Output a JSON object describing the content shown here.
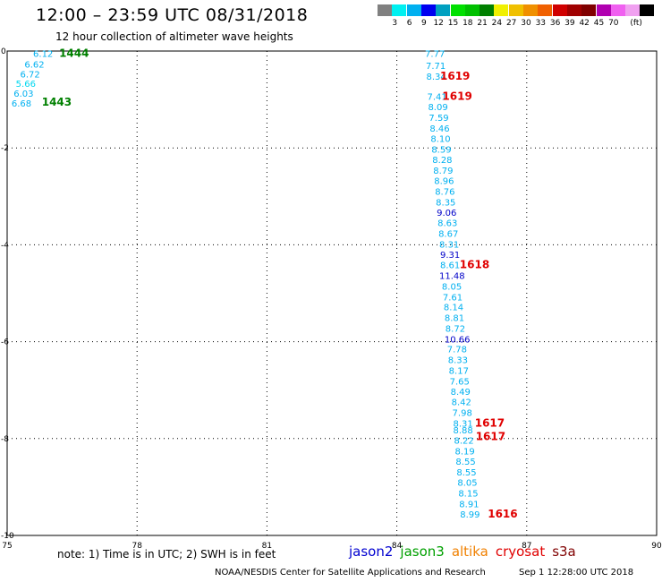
{
  "header": {
    "title": "12:00 – 23:59 UTC 08/31/2018",
    "subtitle": "12 hour collection of altimeter wave heights"
  },
  "legend": {
    "colors": [
      "#808080",
      "#00f0f0",
      "#00b0f0",
      "#0000f0",
      "#00a0c0",
      "#00e000",
      "#00c000",
      "#008000",
      "#f0f000",
      "#f0c000",
      "#f09000",
      "#f06000",
      "#d00000",
      "#a00000",
      "#800000",
      "#b000b0",
      "#f060f0",
      "#f0a0f0",
      "#000000"
    ],
    "labels": [
      "3",
      "6",
      "9",
      "12",
      "15",
      "18",
      "21",
      "24",
      "27",
      "30",
      "33",
      "36",
      "39",
      "42",
      "45",
      "70"
    ],
    "unit": "(ft)"
  },
  "footer": {
    "note": "note: 1) Time is in UTC; 2) SWH is in feet",
    "missions": [
      {
        "name": "jason2",
        "color": "#0000d0"
      },
      {
        "name": "jason3",
        "color": "#00a000"
      },
      {
        "name": "altika",
        "color": "#f08000"
      },
      {
        "name": "cryosat",
        "color": "#e00000"
      },
      {
        "name": "s3a",
        "color": "#800000"
      }
    ],
    "credit": "NOAA/NESDIS Center for Satellite Applications and Research",
    "stamp": "Sep  1 12:28:00 UTC 2018"
  },
  "chart_data": {
    "type": "scatter",
    "xlim": [
      75,
      90
    ],
    "ylim": [
      -10,
      0
    ],
    "x_ticks": [
      "75",
      "78",
      "81",
      "84",
      "87",
      "90"
    ],
    "y_ticks": [
      "0",
      "-2",
      "-4",
      "-6",
      "-8",
      "-10"
    ],
    "grid": true,
    "wave_heights": [
      {
        "lon": 75.6,
        "lat": -0.05,
        "value": "6.12",
        "color": "#00b0f0"
      },
      {
        "lon": 75.4,
        "lat": -0.27,
        "value": "6.62",
        "color": "#00b0f0"
      },
      {
        "lon": 75.3,
        "lat": -0.47,
        "value": "6.72",
        "color": "#00b0f0"
      },
      {
        "lon": 75.2,
        "lat": -0.67,
        "value": "5.66",
        "color": "#00d8f0"
      },
      {
        "lon": 75.15,
        "lat": -0.87,
        "value": "6.03",
        "color": "#00b0f0"
      },
      {
        "lon": 75.1,
        "lat": -1.07,
        "value": "6.68",
        "color": "#00b0f0"
      },
      {
        "lon": 84.65,
        "lat": -0.05,
        "value": "7.77",
        "color": "#00b0f0"
      },
      {
        "lon": 84.67,
        "lat": -0.3,
        "value": "7.71",
        "color": "#00b0f0"
      },
      {
        "lon": 84.68,
        "lat": -0.52,
        "value": "8.34",
        "color": "#00b0f0"
      },
      {
        "lon": 84.7,
        "lat": -0.93,
        "value": "7.41",
        "color": "#00b0f0"
      },
      {
        "lon": 84.72,
        "lat": -1.15,
        "value": "8.09",
        "color": "#00b0f0"
      },
      {
        "lon": 84.74,
        "lat": -1.37,
        "value": "7.59",
        "color": "#00b0f0"
      },
      {
        "lon": 84.76,
        "lat": -1.59,
        "value": "8.46",
        "color": "#00b0f0"
      },
      {
        "lon": 84.78,
        "lat": -1.8,
        "value": "8.10",
        "color": "#00b0f0"
      },
      {
        "lon": 84.8,
        "lat": -2.02,
        "value": "8.59",
        "color": "#00b0f0"
      },
      {
        "lon": 84.82,
        "lat": -2.24,
        "value": "8.28",
        "color": "#00b0f0"
      },
      {
        "lon": 84.84,
        "lat": -2.46,
        "value": "8.79",
        "color": "#00b0f0"
      },
      {
        "lon": 84.86,
        "lat": -2.67,
        "value": "8.96",
        "color": "#00b0f0"
      },
      {
        "lon": 84.88,
        "lat": -2.89,
        "value": "8.76",
        "color": "#00b0f0"
      },
      {
        "lon": 84.9,
        "lat": -3.11,
        "value": "8.35",
        "color": "#00b0f0"
      },
      {
        "lon": 84.92,
        "lat": -3.33,
        "value": "9.06",
        "color": "#0000c8"
      },
      {
        "lon": 84.94,
        "lat": -3.54,
        "value": "8.63",
        "color": "#00b0f0"
      },
      {
        "lon": 84.96,
        "lat": -3.76,
        "value": "8.67",
        "color": "#00b0f0"
      },
      {
        "lon": 84.98,
        "lat": -3.98,
        "value": "8.31",
        "color": "#00b0f0"
      },
      {
        "lon": 85.0,
        "lat": -4.2,
        "value": "9.31",
        "color": "#0000c8"
      },
      {
        "lon": 85.0,
        "lat": -4.41,
        "value": "8.61",
        "color": "#00b0f0"
      },
      {
        "lon": 84.98,
        "lat": -4.63,
        "value": "11.48",
        "color": "#0000c8"
      },
      {
        "lon": 85.04,
        "lat": -4.85,
        "value": "8.05",
        "color": "#00b0f0"
      },
      {
        "lon": 85.06,
        "lat": -5.07,
        "value": "7.61",
        "color": "#00b0f0"
      },
      {
        "lon": 85.08,
        "lat": -5.28,
        "value": "8.14",
        "color": "#00b0f0"
      },
      {
        "lon": 85.1,
        "lat": -5.5,
        "value": "8.81",
        "color": "#00b0f0"
      },
      {
        "lon": 85.12,
        "lat": -5.72,
        "value": "8.72",
        "color": "#00b0f0"
      },
      {
        "lon": 85.1,
        "lat": -5.94,
        "value": "10.66",
        "color": "#0000c8"
      },
      {
        "lon": 85.16,
        "lat": -6.15,
        "value": "7.78",
        "color": "#00b0f0"
      },
      {
        "lon": 85.18,
        "lat": -6.37,
        "value": "8.33",
        "color": "#00b0f0"
      },
      {
        "lon": 85.2,
        "lat": -6.59,
        "value": "8.17",
        "color": "#00b0f0"
      },
      {
        "lon": 85.22,
        "lat": -6.81,
        "value": "7.65",
        "color": "#00b0f0"
      },
      {
        "lon": 85.24,
        "lat": -7.02,
        "value": "8.49",
        "color": "#00b0f0"
      },
      {
        "lon": 85.26,
        "lat": -7.24,
        "value": "8.42",
        "color": "#00b0f0"
      },
      {
        "lon": 85.28,
        "lat": -7.46,
        "value": "7.98",
        "color": "#00b0f0"
      },
      {
        "lon": 85.3,
        "lat": -7.68,
        "value": "8.31",
        "color": "#00b0f0"
      },
      {
        "lon": 85.3,
        "lat": -7.82,
        "value": "8.88",
        "color": "#00b0f0"
      },
      {
        "lon": 85.32,
        "lat": -8.03,
        "value": "8.22",
        "color": "#00b0f0"
      },
      {
        "lon": 85.34,
        "lat": -8.25,
        "value": "8.19",
        "color": "#00b0f0"
      },
      {
        "lon": 85.36,
        "lat": -8.47,
        "value": "8.55",
        "color": "#00b0f0"
      },
      {
        "lon": 85.38,
        "lat": -8.69,
        "value": "8.55",
        "color": "#00b0f0"
      },
      {
        "lon": 85.4,
        "lat": -8.9,
        "value": "8.05",
        "color": "#00b0f0"
      },
      {
        "lon": 85.42,
        "lat": -9.12,
        "value": "8.15",
        "color": "#00b0f0"
      },
      {
        "lon": 85.44,
        "lat": -9.34,
        "value": "8.91",
        "color": "#00b0f0"
      },
      {
        "lon": 85.46,
        "lat": -9.56,
        "value": "8.99",
        "color": "#00b0f0"
      }
    ],
    "pass_times": [
      {
        "lon": 76.2,
        "lat": -0.05,
        "value": "1444",
        "color": "#008000"
      },
      {
        "lon": 75.8,
        "lat": -1.05,
        "value": "1443",
        "color": "#008000"
      },
      {
        "lon": 85.0,
        "lat": -0.52,
        "value": "1619",
        "color": "#e00000"
      },
      {
        "lon": 85.05,
        "lat": -0.93,
        "value": "1619",
        "color": "#e00000"
      },
      {
        "lon": 85.45,
        "lat": -4.41,
        "value": "1618",
        "color": "#e00000"
      },
      {
        "lon": 85.8,
        "lat": -7.68,
        "value": "1617",
        "color": "#e00000"
      },
      {
        "lon": 85.82,
        "lat": -7.96,
        "value": "1617",
        "color": "#e00000"
      },
      {
        "lon": 86.1,
        "lat": -9.56,
        "value": "1616",
        "color": "#e00000"
      }
    ]
  }
}
